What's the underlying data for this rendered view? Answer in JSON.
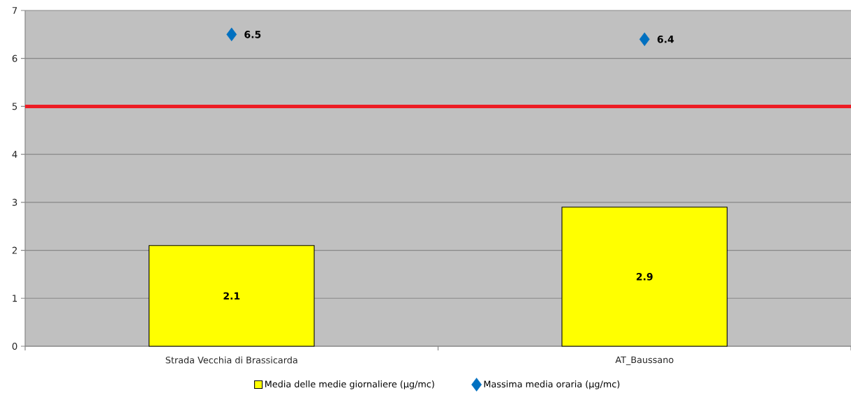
{
  "chart_data": {
    "type": "bar",
    "categories": [
      "Strada Vecchia di Brassicarda",
      "AT_Baussano"
    ],
    "series": [
      {
        "name": "Media delle medie giornaliere (µg/mc)",
        "color": "#ffff00",
        "values": [
          2.1,
          2.9
        ]
      },
      {
        "name": "Massima media oraria (µg/mc)",
        "type": "scatter",
        "marker": "diamond",
        "color": "#0070c0",
        "values": [
          6.5,
          6.4
        ]
      }
    ],
    "ylim": [
      0,
      7
    ],
    "yticks": [
      0,
      1,
      2,
      3,
      4,
      5,
      6,
      7
    ],
    "grid": "y",
    "legend": "bottom",
    "data_labels": true,
    "ref_lines": [
      {
        "axis": "y",
        "value": 5,
        "color": "#ed1c24"
      }
    ]
  }
}
